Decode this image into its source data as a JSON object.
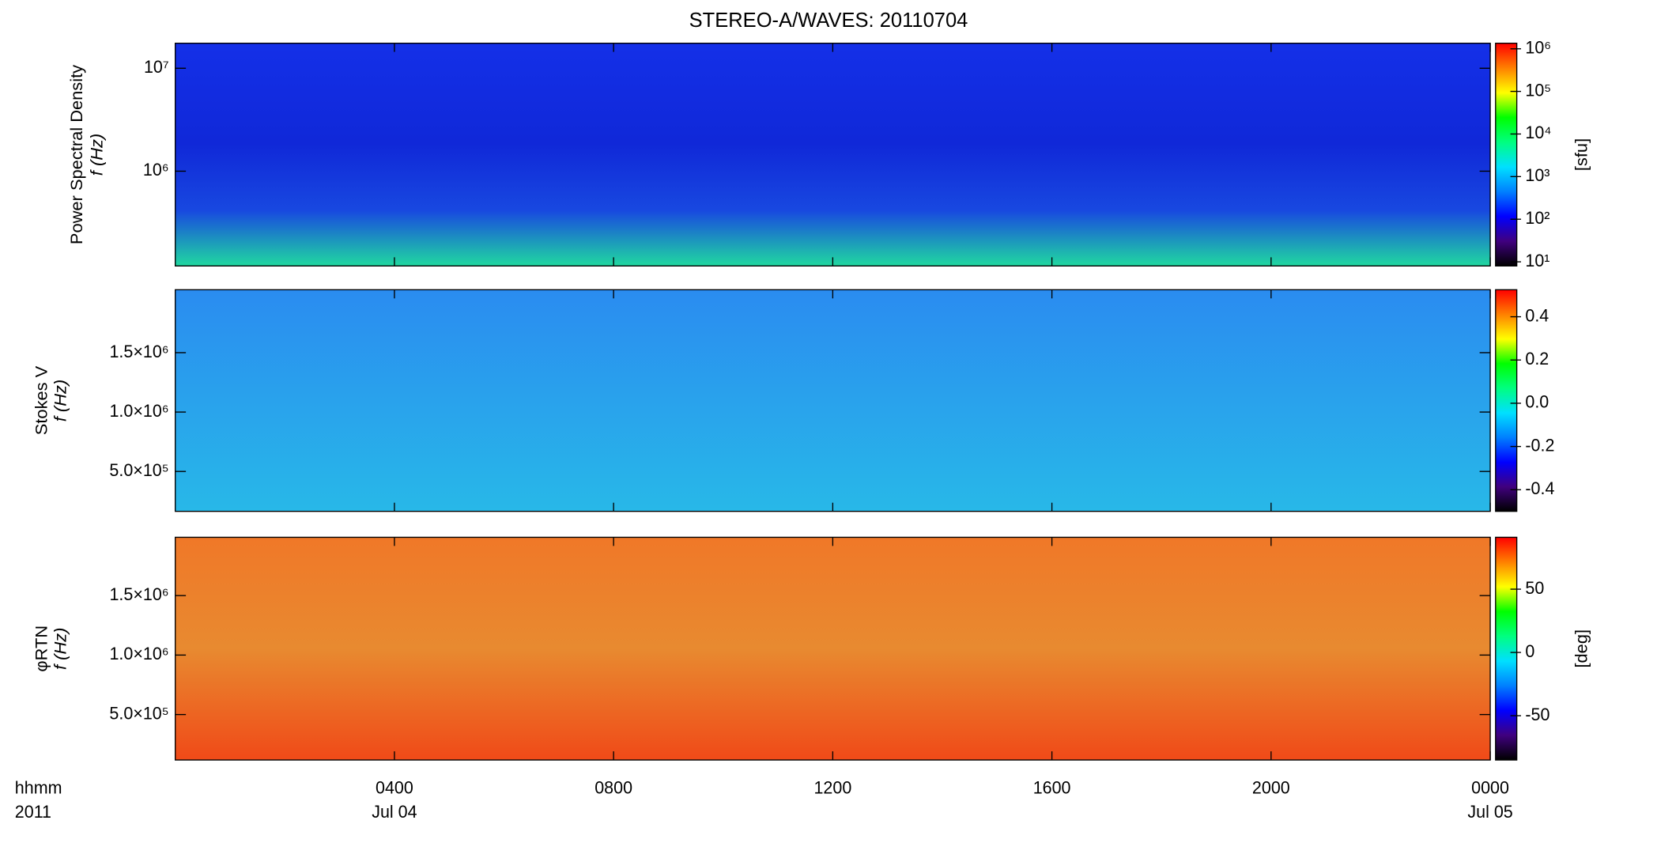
{
  "chart_data": [
    {
      "type": "heatmap",
      "title": "STEREO-A/WAVES: 20110704",
      "ylabel": "Power Spectral Density",
      "ylabel2": "f (Hz)",
      "ylog": true,
      "ylim": [
        120000,
        17500000
      ],
      "yticks": [
        {
          "value": 1000000,
          "label": "10⁶"
        },
        {
          "value": 10000000,
          "label": "10⁷"
        }
      ],
      "clog": true,
      "clim": [
        8,
        1350000
      ],
      "clabel": "[sfu]",
      "cticks": [
        {
          "value": 10,
          "label": "10¹"
        },
        {
          "value": 100,
          "label": "10²"
        },
        {
          "value": 1000,
          "label": "10³"
        },
        {
          "value": 10000,
          "label": "10⁴"
        },
        {
          "value": 100000,
          "label": "10⁵"
        },
        {
          "value": 1000000,
          "label": "10⁶"
        }
      ],
      "colormap": [
        "#000000",
        "#40007f",
        "#0000ff",
        "#0080ff",
        "#00e0ff",
        "#00ff80",
        "#00ff00",
        "#ffff00",
        "#ff8000",
        "#ff0000"
      ]
    },
    {
      "type": "heatmap",
      "ylabel": "Stokes V",
      "ylabel2": "f (Hz)",
      "ylog": false,
      "ylim": [
        164000,
        2030000
      ],
      "yticks": [
        {
          "value": 500000,
          "label": "5.0×10⁵"
        },
        {
          "value": 1000000,
          "label": "1.0×10⁶"
        },
        {
          "value": 1500000,
          "label": "1.5×10⁶"
        }
      ],
      "clog": false,
      "clim": [
        -0.5,
        0.525
      ],
      "cticks": [
        -0.4,
        -0.2,
        {
          "value": 0,
          "label": "0.0"
        },
        0.2,
        0.4
      ],
      "colormap": [
        "#000000",
        "#40007f",
        "#0000ff",
        "#0080ff",
        "#00e0ff",
        "#00ff80",
        "#00ff00",
        "#ffff00",
        "#ff8000",
        "#ff0000"
      ]
    },
    {
      "type": "heatmap",
      "ylabel": "φRTN",
      "ylabel2": "f (Hz)",
      "ylog": false,
      "ylim": [
        118000,
        1990000
      ],
      "yticks": [
        {
          "value": 500000,
          "label": "5.0×10⁵"
        },
        {
          "value": 1000000,
          "label": "1.0×10⁶"
        },
        {
          "value": 1500000,
          "label": "1.5×10⁶"
        }
      ],
      "clog": false,
      "clim": [
        -85,
        91
      ],
      "clabel": "[deg]",
      "cticks": [
        -50,
        0,
        50
      ],
      "colormap": [
        "#000000",
        "#40007f",
        "#0000ff",
        "#0080ff",
        "#00e0ff",
        "#00ff80",
        "#00ff00",
        "#ffff00",
        "#ff8000",
        "#ff0000"
      ],
      "xlabel": "hhmm",
      "xlabel2": "2011",
      "xlim": [
        0,
        24
      ],
      "xticks": [
        {
          "value": 4,
          "label": "0400"
        },
        {
          "value": 8,
          "label": "0800"
        },
        {
          "value": 12,
          "label": "1200"
        },
        {
          "value": 16,
          "label": "1600"
        },
        {
          "value": 20,
          "label": "2000"
        },
        {
          "value": 24,
          "label": "0000"
        }
      ],
      "xticks2": [
        {
          "value": 4,
          "label": "Jul 04"
        },
        {
          "value": 24,
          "label": "Jul 05"
        }
      ]
    }
  ]
}
